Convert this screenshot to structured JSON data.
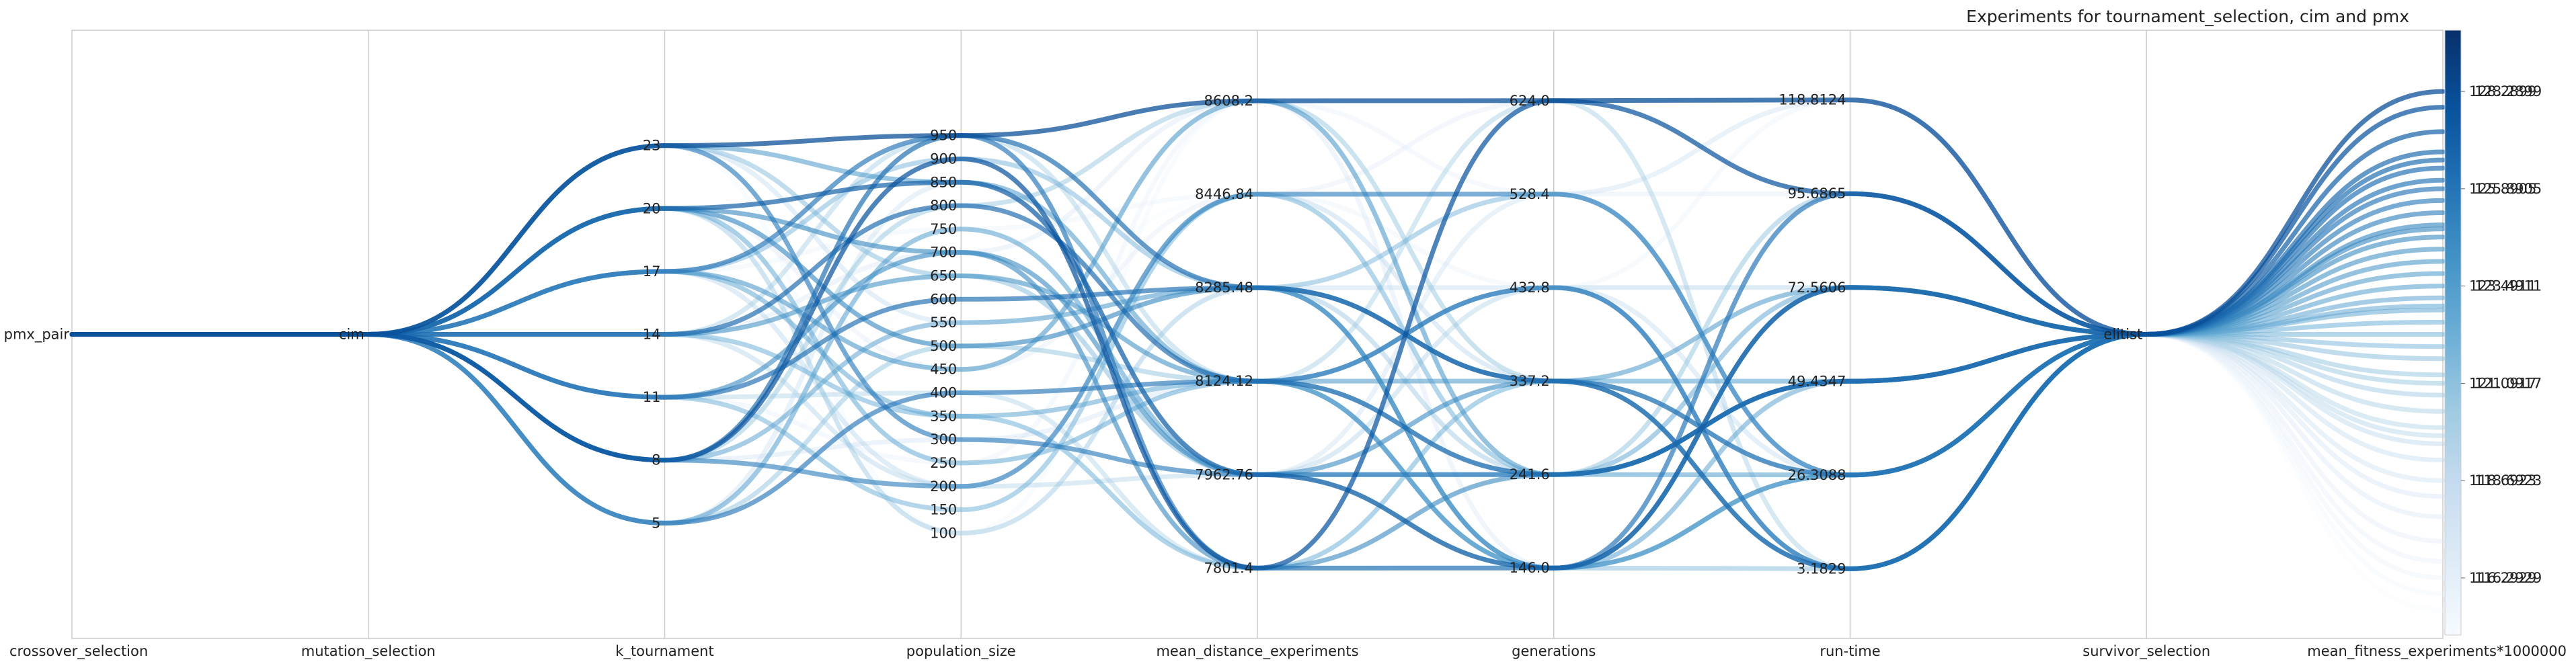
{
  "chart_data": {
    "type": "parallel_coordinates",
    "title": "Experiments for tournament_selection, cim and pmx",
    "grid": true,
    "legend": "colorbar-right",
    "colormap": [
      "#f7fbff",
      "#deebf7",
      "#c6dbef",
      "#9ecae1",
      "#6baed6",
      "#4292c6",
      "#2171b5",
      "#08519c",
      "#08306b"
    ],
    "color_range": [
      115.0,
      130.0
    ],
    "axes": [
      {
        "key": "crossover_selection",
        "label": "crossover_selection",
        "type": "categorical",
        "ticks": [
          {
            "v": 0,
            "text": "pmx_pair"
          }
        ],
        "range": [
          -1,
          1
        ]
      },
      {
        "key": "mutation_selection",
        "label": "mutation_selection",
        "type": "categorical",
        "ticks": [
          {
            "v": 0,
            "text": "cim"
          }
        ],
        "range": [
          -1,
          1
        ]
      },
      {
        "key": "k_tournament",
        "label": "k_tournament",
        "type": "numeric",
        "range": [
          -0.5,
          28.5
        ],
        "ticks": [
          {
            "v": 5,
            "text": "5"
          },
          {
            "v": 8,
            "text": "8"
          },
          {
            "v": 11,
            "text": "11"
          },
          {
            "v": 14,
            "text": "14"
          },
          {
            "v": 17,
            "text": "17"
          },
          {
            "v": 20,
            "text": "20"
          },
          {
            "v": 23,
            "text": "23"
          }
        ]
      },
      {
        "key": "population_size",
        "label": "population_size",
        "type": "numeric",
        "range": [
          -125,
          1175
        ],
        "ticks": [
          {
            "v": 100,
            "text": "100"
          },
          {
            "v": 150,
            "text": "150"
          },
          {
            "v": 200,
            "text": "200"
          },
          {
            "v": 250,
            "text": "250"
          },
          {
            "v": 300,
            "text": "300"
          },
          {
            "v": 350,
            "text": "350"
          },
          {
            "v": 400,
            "text": "400"
          },
          {
            "v": 450,
            "text": "450"
          },
          {
            "v": 500,
            "text": "500"
          },
          {
            "v": 550,
            "text": "550"
          },
          {
            "v": 600,
            "text": "600"
          },
          {
            "v": 650,
            "text": "650"
          },
          {
            "v": 700,
            "text": "700"
          },
          {
            "v": 750,
            "text": "750"
          },
          {
            "v": 800,
            "text": "800"
          },
          {
            "v": 850,
            "text": "850"
          },
          {
            "v": 900,
            "text": "900"
          },
          {
            "v": 950,
            "text": "950"
          }
        ]
      },
      {
        "key": "mean_distance_experiments",
        "label": "mean_distance_experiments",
        "type": "numeric",
        "range": [
          7680,
          8730
        ],
        "ticks": [
          {
            "v": 7801.4,
            "text": "7801.4"
          },
          {
            "v": 7962.76,
            "text": "7962.76"
          },
          {
            "v": 8124.12,
            "text": "8124.12"
          },
          {
            "v": 8285.48,
            "text": "8285.48"
          },
          {
            "v": 8446.84,
            "text": "8446.84"
          },
          {
            "v": 8608.2,
            "text": "8608.2"
          }
        ]
      },
      {
        "key": "generations",
        "label": "generations",
        "type": "numeric",
        "range": [
          74,
          696
        ],
        "ticks": [
          {
            "v": 146.0,
            "text": "146.0"
          },
          {
            "v": 241.6,
            "text": "241.6"
          },
          {
            "v": 337.2,
            "text": "337.2"
          },
          {
            "v": 432.8,
            "text": "432.8"
          },
          {
            "v": 528.4,
            "text": "528.4"
          },
          {
            "v": 624.0,
            "text": "624.0"
          }
        ]
      },
      {
        "key": "run_time",
        "label": "run-time",
        "type": "numeric",
        "range": [
          -14,
          136
        ],
        "ticks": [
          {
            "v": 3.1829,
            "text": "3.1829"
          },
          {
            "v": 26.3088,
            "text": "26.3088"
          },
          {
            "v": 49.4347,
            "text": "49.4347"
          },
          {
            "v": 72.5606,
            "text": "72.5606"
          },
          {
            "v": 95.6865,
            "text": "95.6865"
          },
          {
            "v": 118.8124,
            "text": "118.8124"
          }
        ]
      },
      {
        "key": "survivor_selection",
        "label": "survivor_selection",
        "type": "categorical",
        "ticks": [
          {
            "v": 0,
            "text": "elitist"
          }
        ],
        "range": [
          -1,
          1
        ]
      },
      {
        "key": "mean_fitness_experiments",
        "label": "mean_fitness_experiments*1000000",
        "type": "numeric",
        "range": [
          114.8,
          129.8
        ],
        "ticks": [
          {
            "v": 116.2929,
            "text": "116.2929"
          },
          {
            "v": 118.6923,
            "text": "118.6923"
          },
          {
            "v": 121.0917,
            "text": "121.0917"
          },
          {
            "v": 123.4911,
            "text": "123.4911"
          },
          {
            "v": 125.8905,
            "text": "125.8905"
          },
          {
            "v": 128.2899,
            "text": "128.2899"
          }
        ]
      }
    ],
    "colorbar_ticks": [
      "116.2929",
      "118.6923",
      "121.0917",
      "123.4911",
      "125.8905",
      "128.2899"
    ],
    "series": [
      {
        "values": [
          0,
          0,
          23,
          950,
          8608.2,
          624.0,
          118.8124,
          0,
          128.2899
        ]
      },
      {
        "values": [
          0,
          0,
          8,
          900,
          7801.4,
          624.0,
          95.6865,
          0,
          127.9
        ]
      },
      {
        "values": [
          0,
          0,
          20,
          850,
          7962.76,
          146.0,
          72.5606,
          0,
          127.3
        ]
      },
      {
        "values": [
          0,
          0,
          14,
          800,
          8124.12,
          241.6,
          49.4347,
          0,
          126.8
        ]
      },
      {
        "values": [
          0,
          0,
          11,
          600,
          8285.48,
          337.2,
          26.3088,
          0,
          126.4
        ]
      },
      {
        "values": [
          0,
          0,
          17,
          950,
          7801.4,
          146.0,
          95.6865,
          0,
          126.1
        ]
      },
      {
        "values": [
          0,
          0,
          5,
          400,
          8124.12,
          432.8,
          3.1829,
          0,
          125.8905
        ]
      },
      {
        "values": [
          0,
          0,
          23,
          300,
          7962.76,
          241.6,
          49.4347,
          0,
          125.6
        ]
      },
      {
        "values": [
          0,
          0,
          8,
          200,
          8446.84,
          528.4,
          26.3088,
          0,
          125.3
        ]
      },
      {
        "values": [
          0,
          0,
          20,
          500,
          8285.48,
          146.0,
          72.5606,
          0,
          125.0
        ]
      },
      {
        "values": [
          0,
          0,
          11,
          700,
          7962.76,
          337.2,
          3.1829,
          0,
          124.7
        ]
      },
      {
        "values": [
          0,
          0,
          14,
          650,
          8124.12,
          146.0,
          26.3088,
          0,
          124.4
        ]
      },
      {
        "values": [
          0,
          0,
          17,
          450,
          8608.2,
          241.6,
          49.4347,
          0,
          124.1
        ]
      },
      {
        "values": [
          0,
          0,
          23,
          850,
          8124.12,
          337.2,
          72.5606,
          0,
          123.8
        ]
      },
      {
        "values": [
          0,
          0,
          5,
          750,
          7962.76,
          241.6,
          26.3088,
          0,
          123.4911
        ]
      },
      {
        "values": [
          0,
          0,
          8,
          550,
          8285.48,
          146.0,
          49.4347,
          0,
          123.2
        ]
      },
      {
        "values": [
          0,
          0,
          20,
          250,
          8124.12,
          432.8,
          3.1829,
          0,
          122.9
        ]
      },
      {
        "values": [
          0,
          0,
          14,
          350,
          7801.4,
          337.2,
          49.4347,
          0,
          122.6
        ]
      },
      {
        "values": [
          0,
          0,
          11,
          150,
          8446.84,
          241.6,
          72.5606,
          0,
          122.3
        ]
      },
      {
        "values": [
          0,
          0,
          17,
          900,
          8285.48,
          528.4,
          26.3088,
          0,
          122.0
        ]
      },
      {
        "values": [
          0,
          0,
          23,
          650,
          7962.76,
          146.0,
          3.1829,
          0,
          121.7
        ]
      },
      {
        "values": [
          0,
          0,
          5,
          500,
          8124.12,
          241.6,
          95.6865,
          0,
          121.3
        ]
      },
      {
        "values": [
          0,
          0,
          8,
          800,
          8608.2,
          337.2,
          26.3088,
          0,
          121.0917
        ]
      },
      {
        "values": [
          0,
          0,
          20,
          100,
          8285.48,
          241.6,
          49.4347,
          0,
          120.8
        ]
      },
      {
        "values": [
          0,
          0,
          14,
          950,
          8124.12,
          624.0,
          3.1829,
          0,
          120.4
        ]
      },
      {
        "values": [
          0,
          0,
          11,
          400,
          7801.4,
          146.0,
          72.5606,
          0,
          120.0
        ]
      },
      {
        "values": [
          0,
          0,
          17,
          200,
          8446.84,
          337.2,
          49.4347,
          0,
          119.6
        ]
      },
      {
        "values": [
          0,
          0,
          23,
          550,
          8285.48,
          432.8,
          26.3088,
          0,
          119.2
        ]
      },
      {
        "values": [
          0,
          0,
          5,
          850,
          7962.76,
          528.4,
          118.8124,
          0,
          118.6923
        ]
      },
      {
        "values": [
          0,
          0,
          8,
          300,
          8124.12,
          241.6,
          72.5606,
          0,
          118.3
        ]
      },
      {
        "values": [
          0,
          0,
          14,
          700,
          8608.2,
          146.0,
          95.6865,
          0,
          117.8
        ]
      },
      {
        "values": [
          0,
          0,
          20,
          450,
          8446.84,
          624.0,
          118.8124,
          0,
          117.2
        ]
      },
      {
        "values": [
          0,
          0,
          11,
          250,
          8608.2,
          528.4,
          95.6865,
          0,
          116.7
        ]
      },
      {
        "values": [
          0,
          0,
          17,
          750,
          8446.84,
          432.8,
          118.8124,
          0,
          116.2929
        ]
      },
      {
        "values": [
          0,
          0,
          23,
          100,
          8608.2,
          624.0,
          118.8124,
          0,
          115.9
        ]
      },
      {
        "values": [
          0,
          0,
          5,
          600,
          8446.84,
          528.4,
          95.6865,
          0,
          115.5
        ]
      },
      {
        "values": [
          0,
          0,
          14,
          200,
          7962.76,
          432.8,
          72.5606,
          0,
          119.8
        ]
      },
      {
        "values": [
          0,
          0,
          20,
          700,
          7801.4,
          241.6,
          49.4347,
          0,
          124.9
        ]
      },
      {
        "values": [
          0,
          0,
          8,
          950,
          8285.48,
          337.2,
          3.1829,
          0,
          126.6
        ]
      },
      {
        "values": [
          0,
          0,
          17,
          350,
          8124.12,
          146.0,
          26.3088,
          0,
          123.0
        ]
      }
    ]
  }
}
